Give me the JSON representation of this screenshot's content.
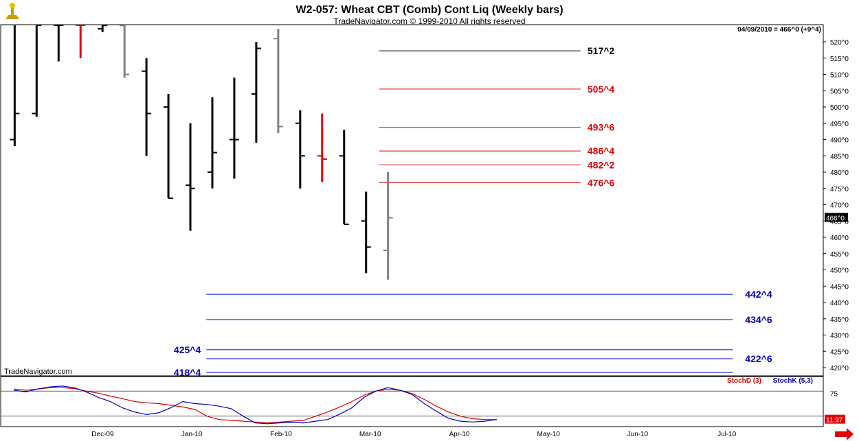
{
  "header": {
    "title": "W2-057:  Wheat CBT (Comb) Cont Liq  (Weekly bars)",
    "subtitle": "TradeNavigator.com © 1999-2010 All rights reserved",
    "info": "04/09/2010 = 466^0 (+9^4)",
    "watermark": "TradeNavigator.com"
  },
  "colors": {
    "up": "#000000",
    "red": "#dd0000",
    "blue": "#0000bb",
    "gray": "#808080",
    "green": "#00cc00"
  },
  "chart_data": [
    {
      "type": "ohlc",
      "y_ticks": [
        "420^0",
        "425^0",
        "430^0",
        "435^0",
        "440^0",
        "445^0",
        "450^0",
        "455^0",
        "460^0",
        "465^0",
        "470^0",
        "475^0",
        "480^0",
        "485^0",
        "490^0",
        "495^0",
        "500^0",
        "505^0",
        "510^0",
        "515^0",
        "520^0"
      ],
      "y_range": [
        416,
        524
      ],
      "x_labels": [
        "Dec-09",
        "Jan-10",
        "Feb-10",
        "Mar-10",
        "Apr-10",
        "May-10",
        "Jun-10",
        "Jul-10"
      ],
      "last_price_label": "466^0",
      "bars": [
        {
          "high": 530,
          "low": 488,
          "open": 490,
          "close": 498,
          "color": "#000000"
        },
        {
          "high": 530,
          "low": 497,
          "open": 498,
          "close": 530,
          "color": "#000000"
        },
        {
          "high": 530,
          "low": 514,
          "open": 530,
          "close": 530,
          "color": "#000000"
        },
        {
          "high": 530,
          "low": 515,
          "open": 530,
          "close": 530,
          "color": "#dd0000"
        },
        {
          "high": 530,
          "low": 523,
          "open": 524,
          "close": 525,
          "color": "#000000"
        },
        {
          "high": 530,
          "low": 509,
          "open": 525,
          "close": 510,
          "color": "#808080"
        },
        {
          "high": 515,
          "low": 485,
          "open": 511,
          "close": 498,
          "color": "#000000"
        },
        {
          "high": 504,
          "low": 472,
          "open": 500,
          "close": 472,
          "color": "#000000"
        },
        {
          "high": 495,
          "low": 462,
          "open": 476,
          "close": 475,
          "color": "#000000"
        },
        {
          "high": 503,
          "low": 475,
          "open": 480,
          "close": 486,
          "color": "#000000"
        },
        {
          "high": 509,
          "low": 478,
          "open": 490,
          "close": 490,
          "color": "#000000"
        },
        {
          "high": 520,
          "low": 489,
          "open": 504,
          "close": 518,
          "color": "#000000"
        },
        {
          "high": 524,
          "low": 492,
          "open": 521,
          "close": 494,
          "color": "#808080"
        },
        {
          "high": 499,
          "low": 475,
          "open": 495,
          "close": 485,
          "color": "#000000"
        },
        {
          "high": 498,
          "low": 477,
          "open": 485,
          "close": 484,
          "color": "#dd0000"
        },
        {
          "high": 493,
          "low": 464,
          "open": 485,
          "close": 464,
          "color": "#000000"
        },
        {
          "high": 474,
          "low": 449,
          "open": 465,
          "close": 457,
          "color": "#000000"
        },
        {
          "high": 480,
          "low": 447,
          "open": 456,
          "close": 466,
          "color": "#808080"
        }
      ],
      "levels": [
        {
          "label": "517^2",
          "value": 517.25,
          "color": "#000000",
          "start": 0.46,
          "side": "right"
        },
        {
          "label": "505^4",
          "value": 505.5,
          "color": "#dd0000",
          "start": 0.46,
          "side": "right"
        },
        {
          "label": "493^6",
          "value": 493.75,
          "color": "#dd0000",
          "start": 0.46,
          "side": "right"
        },
        {
          "label": "486^4",
          "value": 486.5,
          "color": "#dd0000",
          "start": 0.46,
          "side": "right"
        },
        {
          "label": "482^2",
          "value": 482.25,
          "color": "#dd0000",
          "start": 0.46,
          "side": "right"
        },
        {
          "label": "476^6",
          "value": 476.75,
          "color": "#dd0000",
          "start": 0.46,
          "side": "right"
        },
        {
          "label": "442^4",
          "value": 442.5,
          "color": "#0000bb",
          "start": 0.25,
          "side": "far"
        },
        {
          "label": "434^6",
          "value": 434.75,
          "color": "#0000bb",
          "start": 0.25,
          "side": "far"
        },
        {
          "label": "425^4",
          "value": 425.5,
          "color": "#0000bb",
          "start": 0.25,
          "side": "left"
        },
        {
          "label": "422^6",
          "value": 422.75,
          "color": "#0000bb",
          "start": 0.25,
          "side": "far"
        },
        {
          "label": "418^4",
          "value": 418.5,
          "color": "#0000bb",
          "start": 0.25,
          "side": "left"
        }
      ]
    },
    {
      "type": "line",
      "title": "Stochastic",
      "legend": [
        {
          "name": "StochD (3)",
          "color": "#dd0000"
        },
        {
          "name": "StochK (5,3)",
          "color": "#0000bb"
        }
      ],
      "y_range": [
        0,
        100
      ],
      "y_ticks": [
        "75"
      ],
      "ref_lines": [
        80,
        20
      ],
      "last_value_label": "11.97",
      "series": [
        {
          "name": "StochD (3)",
          "color": "#dd0000",
          "values": [
            85,
            82,
            85,
            88,
            88,
            86,
            80,
            75,
            68,
            62,
            55,
            52,
            50,
            46,
            42,
            36,
            20,
            12,
            10,
            8,
            6,
            5,
            6,
            8,
            10,
            20,
            30,
            42,
            55,
            70,
            80,
            84,
            82,
            74,
            60,
            44,
            30,
            20,
            14,
            12,
            12
          ]
        },
        {
          "name": "StochK (5,3)",
          "color": "#0000bb",
          "values": [
            82,
            78,
            85,
            90,
            92,
            88,
            78,
            65,
            55,
            40,
            30,
            24,
            28,
            40,
            55,
            50,
            48,
            44,
            38,
            20,
            4,
            2,
            4,
            5,
            4,
            8,
            12,
            25,
            40,
            65,
            80,
            88,
            82,
            72,
            50,
            32,
            15,
            8,
            6,
            8,
            12
          ]
        }
      ]
    }
  ]
}
